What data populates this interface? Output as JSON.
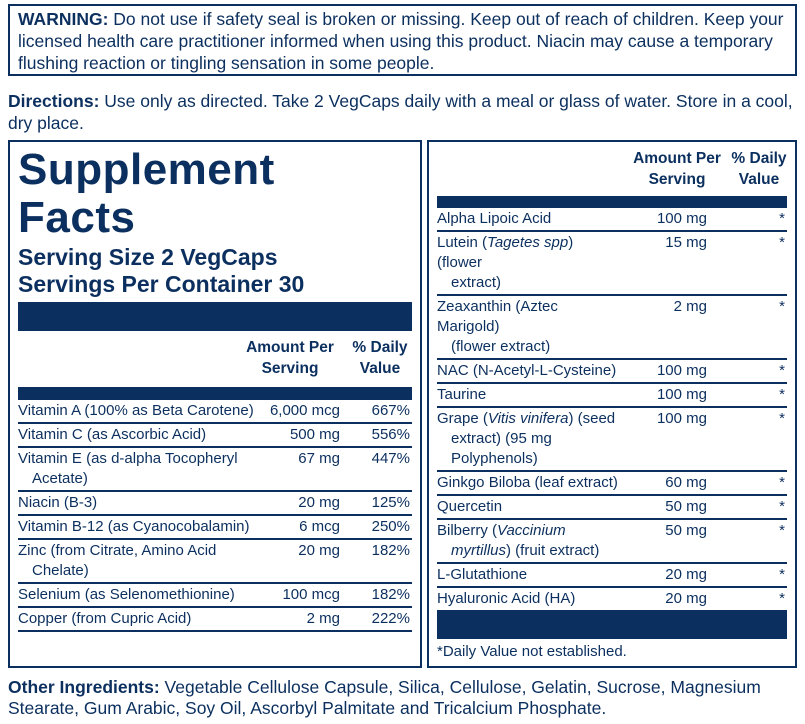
{
  "warning": {
    "label": "WARNING:",
    "text": " Do not use if safety seal is broken or missing. Keep out of reach of children. Keep your licensed health care practitioner informed when using this product. Niacin may cause a temporary flushing reaction or tingling sensation in some people."
  },
  "directions": {
    "label": "Directions:",
    "text": " Use only as directed. Take 2 VegCaps daily with a meal or glass of water. Store in a cool, dry place."
  },
  "facts": {
    "title_line1": "Supplement",
    "title_line2": "Facts",
    "serving_size": "Serving Size 2 VegCaps",
    "servings_per_container": "Servings Per Container 30",
    "col_amount": "Amount Per Serving",
    "col_dv": "% Daily Value",
    "left_rows": [
      {
        "name": "Vitamin A (100% as Beta Carotene)",
        "amount": "6,000 mcg",
        "dv": "667%"
      },
      {
        "name": "Vitamin C (as Ascorbic Acid)",
        "amount": "500 mg",
        "dv": "556%"
      },
      {
        "name": "Vitamin E (as d-alpha Tocopheryl",
        "cont": "Acetate)",
        "amount": "67 mg",
        "dv": "447%"
      },
      {
        "name": "Niacin (B-3)",
        "amount": "20 mg",
        "dv": "125%"
      },
      {
        "name": "Vitamin B-12 (as Cyanocobalamin)",
        "amount": "6 mcg",
        "dv": "250%"
      },
      {
        "name": "Zinc (from Citrate, Amino Acid",
        "cont": "Chelate)",
        "amount": "20 mg",
        "dv": "182%"
      },
      {
        "name": "Selenium (as Selenomethionine)",
        "amount": "100 mcg",
        "dv": "182%"
      },
      {
        "name": "Copper (from Cupric Acid)",
        "amount": "2 mg",
        "dv": "222%"
      }
    ],
    "right_rows": [
      {
        "name": "Alpha Lipoic Acid",
        "amount": "100 mg",
        "dv": "*"
      },
      {
        "name": "Lutein (",
        "italic": "Tagetes spp",
        "post": ") (flower",
        "cont": "extract)",
        "amount": "15 mg",
        "dv": "*"
      },
      {
        "name": "Zeaxanthin (Aztec Marigold)",
        "cont": "(flower extract)",
        "amount": "2 mg",
        "dv": "*"
      },
      {
        "name": "NAC (N-Acetyl-L-Cysteine)",
        "amount": "100 mg",
        "dv": "*"
      },
      {
        "name": "Taurine",
        "amount": "100 mg",
        "dv": "*"
      },
      {
        "name": "Grape (",
        "italic": "Vitis vinifera",
        "post": ") (seed",
        "cont": "extract) (95 mg",
        "cont2": "Polyphenols)",
        "amount": "100 mg",
        "dv": "*"
      },
      {
        "name": "Ginkgo Biloba (leaf extract)",
        "amount": "60 mg",
        "dv": "*"
      },
      {
        "name": "Quercetin",
        "amount": "50 mg",
        "dv": "*"
      },
      {
        "name": "Bilberry (",
        "italic": "Vaccinium",
        "cont_italic": "myrtillus",
        "cont_post": ") (fruit extract)",
        "amount": "50 mg",
        "dv": "*"
      },
      {
        "name": "L-Glutathione",
        "amount": "20 mg",
        "dv": "*"
      },
      {
        "name": "Hyaluronic Acid (HA)",
        "amount": "20 mg",
        "dv": "*"
      }
    ],
    "footnote": "*Daily Value not established."
  },
  "other": {
    "label": "Other Ingredients:",
    "text": " Vegetable Cellulose Capsule, Silica, Cellulose, Gelatin, Sucrose, Magnesium Stearate, Gum Arabic, Soy Oil, Ascorbyl Palmitate and Tricalcium Phosphate."
  },
  "colors": {
    "navy": "#0b2f5e"
  }
}
